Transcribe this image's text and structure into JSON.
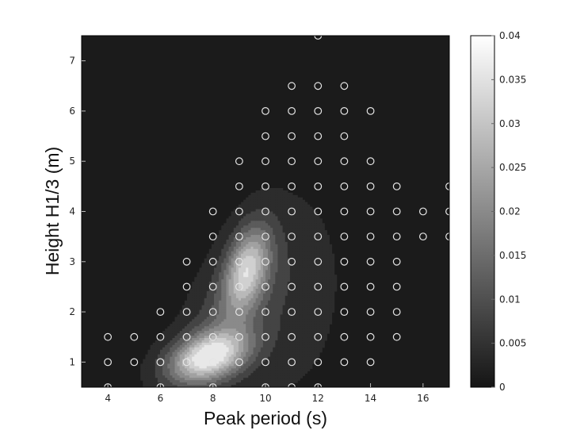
{
  "chart_data": {
    "type": "contour",
    "title": "",
    "xlabel": "Peak period (s)",
    "ylabel": "Height H1/3 (m)",
    "xlim": [
      3,
      17
    ],
    "ylim": [
      0.5,
      7.5
    ],
    "xticks": [
      4,
      6,
      8,
      10,
      12,
      14,
      16
    ],
    "yticks": [
      1,
      2,
      3,
      4,
      5,
      6,
      7
    ],
    "colorbar": {
      "range": [
        0,
        0.04
      ],
      "ticks": [
        "0",
        "0.005",
        "0.01",
        "0.015",
        "0.02",
        "0.025",
        "0.03",
        "0.035",
        "0.04"
      ],
      "colormap": "gray"
    },
    "grid": false,
    "points": [
      [
        4,
        0.5
      ],
      [
        6,
        0.5
      ],
      [
        8,
        0.5
      ],
      [
        10,
        0.5
      ],
      [
        11,
        0.5
      ],
      [
        12,
        0.5
      ],
      [
        4,
        1
      ],
      [
        5,
        1
      ],
      [
        6,
        1
      ],
      [
        7,
        1
      ],
      [
        8,
        1
      ],
      [
        9,
        1
      ],
      [
        10,
        1
      ],
      [
        11,
        1
      ],
      [
        12,
        1
      ],
      [
        13,
        1
      ],
      [
        14,
        1
      ],
      [
        4,
        1.5
      ],
      [
        5,
        1.5
      ],
      [
        6,
        1.5
      ],
      [
        7,
        1.5
      ],
      [
        8,
        1.5
      ],
      [
        9,
        1.5
      ],
      [
        10,
        1.5
      ],
      [
        11,
        1.5
      ],
      [
        12,
        1.5
      ],
      [
        13,
        1.5
      ],
      [
        14,
        1.5
      ],
      [
        15,
        1.5
      ],
      [
        6,
        2
      ],
      [
        7,
        2
      ],
      [
        8,
        2
      ],
      [
        9,
        2
      ],
      [
        10,
        2
      ],
      [
        11,
        2
      ],
      [
        12,
        2
      ],
      [
        13,
        2
      ],
      [
        14,
        2
      ],
      [
        15,
        2
      ],
      [
        7,
        2.5
      ],
      [
        8,
        2.5
      ],
      [
        9,
        2.5
      ],
      [
        10,
        2.5
      ],
      [
        11,
        2.5
      ],
      [
        12,
        2.5
      ],
      [
        13,
        2.5
      ],
      [
        14,
        2.5
      ],
      [
        15,
        2.5
      ],
      [
        7,
        3
      ],
      [
        8,
        3
      ],
      [
        9,
        3
      ],
      [
        10,
        3
      ],
      [
        11,
        3
      ],
      [
        12,
        3
      ],
      [
        13,
        3
      ],
      [
        14,
        3
      ],
      [
        15,
        3
      ],
      [
        8,
        3.5
      ],
      [
        9,
        3.5
      ],
      [
        10,
        3.5
      ],
      [
        11,
        3.5
      ],
      [
        12,
        3.5
      ],
      [
        13,
        3.5
      ],
      [
        14,
        3.5
      ],
      [
        15,
        3.5
      ],
      [
        16,
        3.5
      ],
      [
        17,
        3.5
      ],
      [
        8,
        4
      ],
      [
        9,
        4
      ],
      [
        10,
        4
      ],
      [
        11,
        4
      ],
      [
        12,
        4
      ],
      [
        13,
        4
      ],
      [
        14,
        4
      ],
      [
        15,
        4
      ],
      [
        16,
        4
      ],
      [
        17,
        4
      ],
      [
        9,
        4.5
      ],
      [
        10,
        4.5
      ],
      [
        11,
        4.5
      ],
      [
        12,
        4.5
      ],
      [
        13,
        4.5
      ],
      [
        14,
        4.5
      ],
      [
        15,
        4.5
      ],
      [
        17,
        4.5
      ],
      [
        9,
        5
      ],
      [
        10,
        5
      ],
      [
        11,
        5
      ],
      [
        12,
        5
      ],
      [
        13,
        5
      ],
      [
        14,
        5
      ],
      [
        10,
        5.5
      ],
      [
        11,
        5.5
      ],
      [
        12,
        5.5
      ],
      [
        13,
        5.5
      ],
      [
        10,
        6
      ],
      [
        11,
        6
      ],
      [
        12,
        6
      ],
      [
        13,
        6
      ],
      [
        14,
        6
      ],
      [
        11,
        6.5
      ],
      [
        12,
        6.5
      ],
      [
        13,
        6.5
      ],
      [
        12,
        7.5
      ]
    ],
    "peaks": [
      {
        "x": 7.8,
        "y": 1.1,
        "amplitude": 0.034,
        "sx": 1.05,
        "sy": 0.36,
        "rho": 0.35
      },
      {
        "x": 9.3,
        "y": 2.85,
        "amplitude": 0.026,
        "sx": 0.6,
        "sy": 0.6,
        "rho": 0.4
      },
      {
        "x": 8.7,
        "y": 2.0,
        "amplitude": 0.009,
        "sx": 1.3,
        "sy": 1.1,
        "rho": 0.55
      },
      {
        "x": 11.0,
        "y": 2.2,
        "amplitude": 0.004,
        "sx": 1.4,
        "sy": 1.4,
        "rho": 0.2
      }
    ],
    "contour_levels": [
      0.002,
      0.006,
      0.01,
      0.014,
      0.018,
      0.022,
      0.026,
      0.03,
      0.034
    ]
  }
}
